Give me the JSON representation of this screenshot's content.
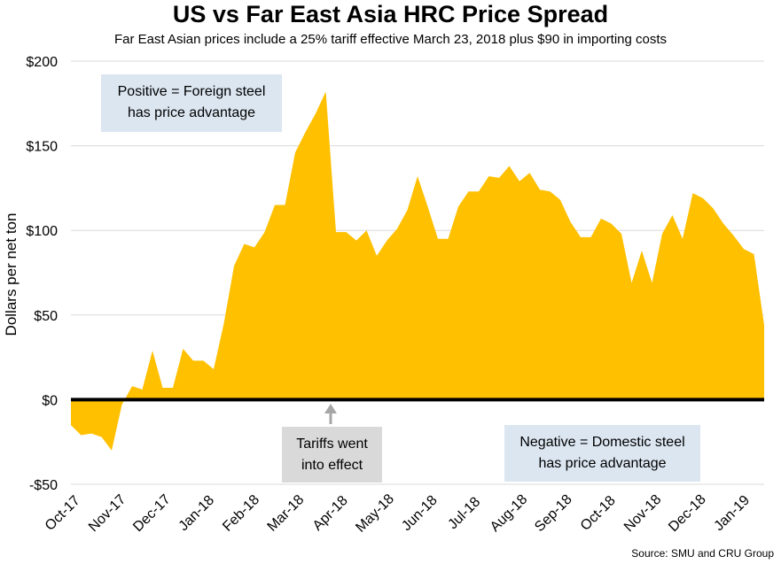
{
  "chart_data": {
    "type": "area",
    "title": "US vs Far East Asia HRC Price Spread",
    "subtitle": "Far East Asian prices include a 25% tariff effective March 23, 2018 plus $90 in importing costs",
    "ylabel": "Dollars per net ton",
    "ylim": [
      -50,
      200
    ],
    "y_ticks": [
      {
        "value": 200,
        "label": "$200"
      },
      {
        "value": 150,
        "label": "$150"
      },
      {
        "value": 100,
        "label": "$100"
      },
      {
        "value": 50,
        "label": "$50"
      },
      {
        "value": 0,
        "label": "$0"
      },
      {
        "value": -50,
        "label": "-$50"
      }
    ],
    "x_ticks": [
      "Oct-17",
      "Nov-17",
      "Dec-17",
      "Jan-18",
      "Feb-18",
      "Mar-18",
      "Apr-18",
      "May-18",
      "Jun-18",
      "Jul-18",
      "Aug-18",
      "Sep-18",
      "Oct-18",
      "Nov-18",
      "Dec-18",
      "Jan-19"
    ],
    "grid": "horizontal",
    "fill_color": "#ffc000",
    "zero_line_color": "#000000",
    "series": [
      {
        "values": [
          -15,
          -21,
          -20,
          -22,
          -30,
          -3,
          8,
          6,
          29,
          7,
          7,
          30,
          23,
          23,
          18,
          45,
          79,
          92,
          90,
          99,
          115,
          115,
          146,
          158,
          169,
          182,
          99,
          99,
          94,
          100,
          85,
          94,
          101,
          112,
          132,
          114,
          95,
          95,
          114,
          123,
          123,
          132,
          131,
          138,
          129,
          134,
          124,
          123,
          118,
          105,
          96,
          96,
          107,
          104,
          98,
          69,
          88,
          69,
          98,
          109,
          95,
          122,
          119,
          113,
          104,
          97,
          89,
          86,
          44
        ]
      }
    ],
    "annotations": [
      {
        "name": "positive-callout",
        "text_lines": [
          "Positive = Foreign steel",
          "has price advantage"
        ]
      },
      {
        "name": "negative-callout",
        "text_lines": [
          "Negative = Domestic steel",
          "has price advantage"
        ]
      },
      {
        "name": "tariff-callout",
        "text_lines": [
          "Tariffs went",
          "into effect"
        ],
        "arrow_x_category": "Mar-18"
      }
    ],
    "source": "Source: SMU and CRU Group"
  }
}
